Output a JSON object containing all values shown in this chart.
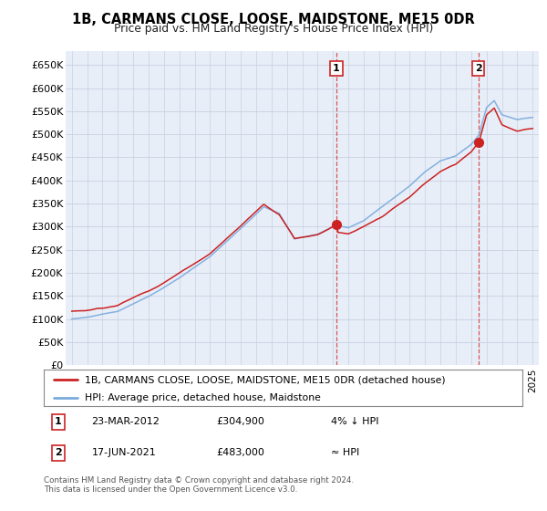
{
  "title": "1B, CARMANS CLOSE, LOOSE, MAIDSTONE, ME15 0DR",
  "subtitle": "Price paid vs. HM Land Registry's House Price Index (HPI)",
  "ylabel_ticks": [
    "£0",
    "£50K",
    "£100K",
    "£150K",
    "£200K",
    "£250K",
    "£300K",
    "£350K",
    "£400K",
    "£450K",
    "£500K",
    "£550K",
    "£600K",
    "£650K"
  ],
  "ytick_values": [
    0,
    50000,
    100000,
    150000,
    200000,
    250000,
    300000,
    350000,
    400000,
    450000,
    500000,
    550000,
    600000,
    650000
  ],
  "ylim": [
    0,
    680000
  ],
  "hpi_color": "#7aaadd",
  "price_color": "#cc2222",
  "background_color": "#e8eef8",
  "grid_color": "#c8d0e0",
  "sale1_t": 2012.22,
  "sale2_t": 2021.46,
  "sale1": {
    "date": "23-MAR-2012",
    "price": 304900,
    "label": "1",
    "note": "4% ↓ HPI"
  },
  "sale2": {
    "date": "17-JUN-2021",
    "price": 483000,
    "label": "2",
    "note": "≈ HPI"
  },
  "legend_house_label": "1B, CARMANS CLOSE, LOOSE, MAIDSTONE, ME15 0DR (detached house)",
  "legend_hpi_label": "HPI: Average price, detached house, Maidstone",
  "footer": "Contains HM Land Registry data © Crown copyright and database right 2024.\nThis data is licensed under the Open Government Licence v3.0.",
  "x_start_year": 1995,
  "x_end_year": 2025
}
